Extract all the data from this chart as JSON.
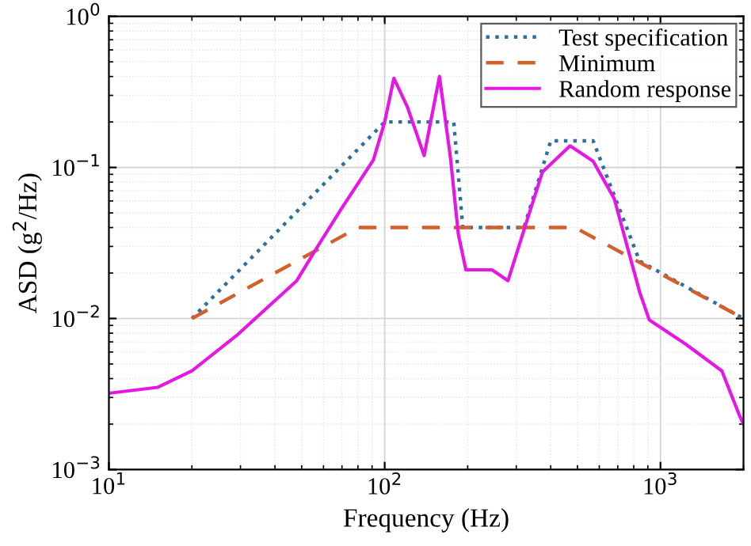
{
  "chart_data": {
    "type": "line",
    "xlabel": "Frequency (Hz)",
    "ylabel": "ASD (g$^{2}$/Hz)",
    "log": "xy",
    "grid": true,
    "legend": "top right",
    "marker": "none",
    "xlim": [
      10,
      2000
    ],
    "ylim": [
      0.001,
      1
    ],
    "xticks": [
      {
        "value": 10,
        "label": "10$^{1}$"
      },
      {
        "value": 100,
        "label": "10$^{2}$"
      },
      {
        "value": 1000,
        "label": "10$^{3}$"
      }
    ],
    "yticks": [
      {
        "value": 0.001,
        "label": "10$^{−3}$"
      },
      {
        "value": 0.01,
        "label": "10$^{−2}$"
      },
      {
        "value": 0.1,
        "label": "10$^{−1}$"
      },
      {
        "value": 1,
        "label": "10$^{0}$"
      }
    ],
    "series": [
      {
        "name": "Test specification",
        "color": "#2e6fa0",
        "line_style": "dotted",
        "x": [
          20,
          100,
          178,
          192,
          320,
          400,
          570,
          840,
          2000
        ],
        "values": [
          0.01,
          0.2,
          0.2,
          0.04,
          0.04,
          0.15,
          0.15,
          0.024,
          0.01
        ]
      },
      {
        "name": "Minimum",
        "color": "#d45f2a",
        "line_style": "dashed",
        "x": [
          20,
          80,
          490,
          2000
        ],
        "values": [
          0.01,
          0.04,
          0.04,
          0.01
        ]
      },
      {
        "name": "Random response",
        "color": "#e617e6",
        "line_style": "solid",
        "x": [
          10,
          15,
          20,
          29,
          48,
          57,
          70,
          91,
          100,
          108,
          121,
          139,
          158,
          173,
          185,
          197,
          245,
          280,
          330,
          373,
          470,
          570,
          680,
          840,
          910,
          1230,
          1670,
          1930,
          2000
        ],
        "values": [
          0.0032,
          0.0035,
          0.0045,
          0.0077,
          0.0178,
          0.0298,
          0.054,
          0.112,
          0.2,
          0.39,
          0.25,
          0.12,
          0.4,
          0.118,
          0.036,
          0.021,
          0.021,
          0.0178,
          0.046,
          0.093,
          0.139,
          0.11,
          0.062,
          0.015,
          0.0098,
          0.0068,
          0.0045,
          0.0023,
          0.002
        ]
      }
    ]
  }
}
